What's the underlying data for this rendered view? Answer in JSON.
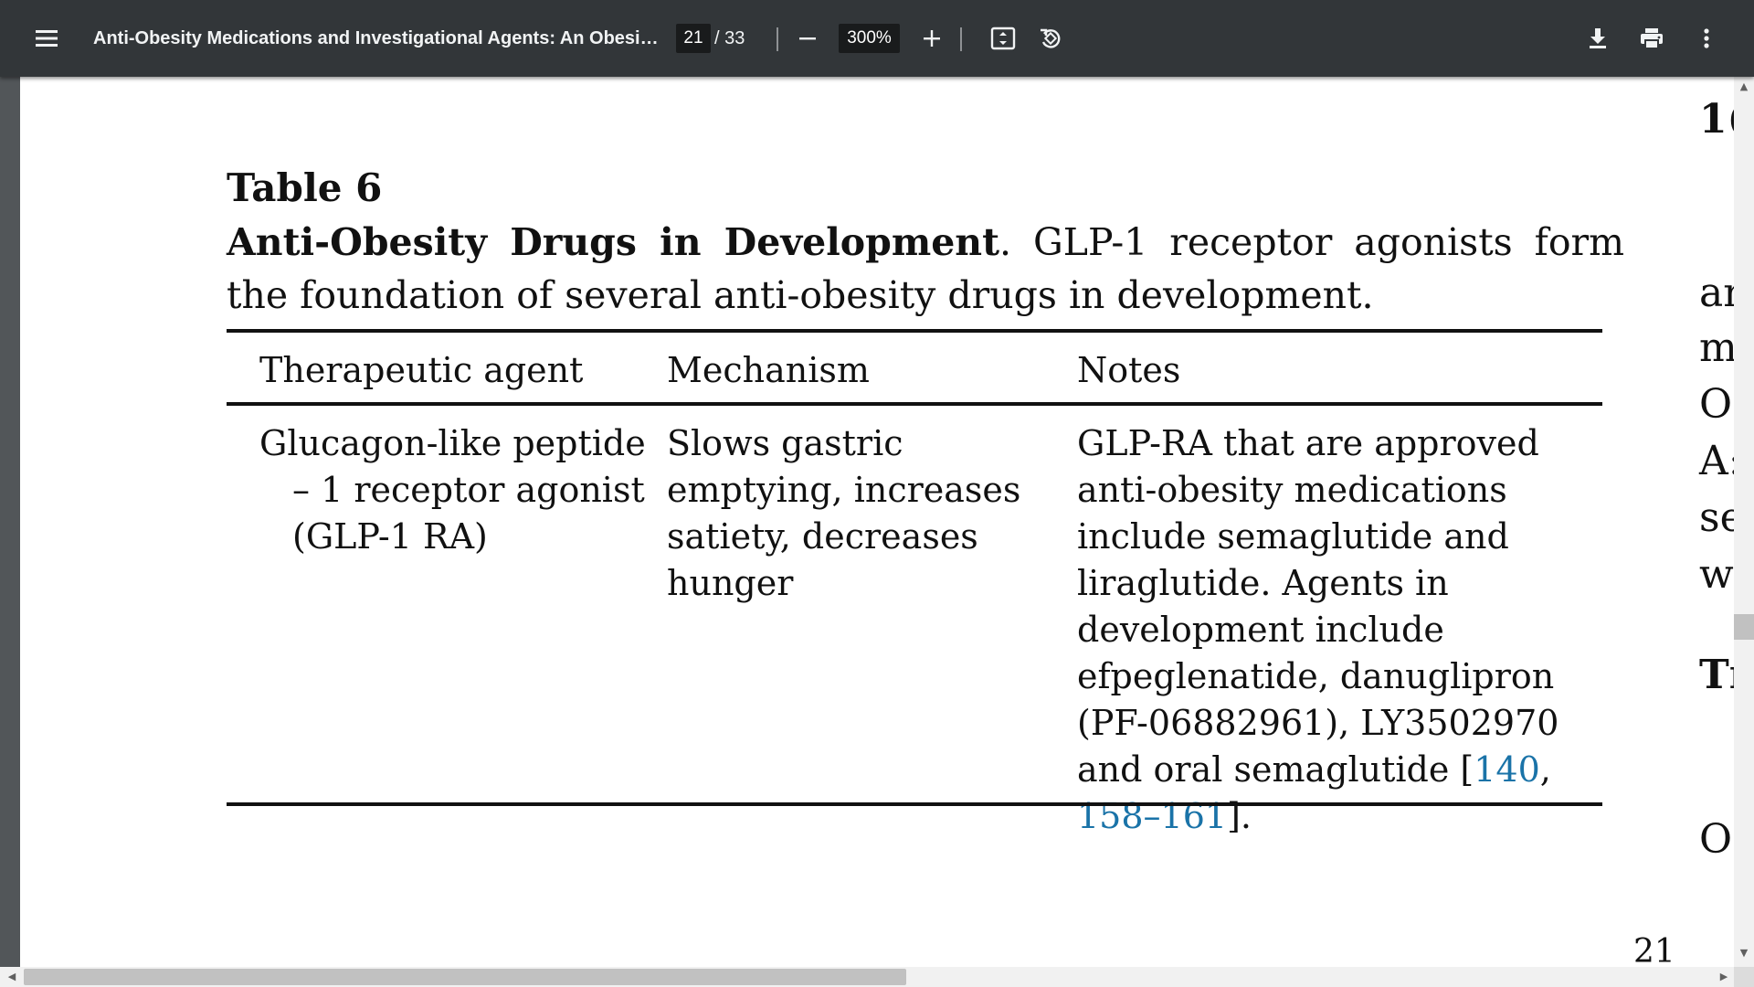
{
  "toolbar": {
    "menu_icon": "hamburger-menu-icon",
    "title": "Anti-Obesity Medications and Investigational Agents: An Obesit...",
    "page_current": "21",
    "page_separator": "/ 33",
    "zoom": "300%",
    "icons": [
      "zoom-out-icon",
      "zoom-in-icon",
      "fit-page-icon",
      "rotate-icon",
      "download-icon",
      "print-icon",
      "more-vert-icon"
    ]
  },
  "document": {
    "table_label": "Table 6",
    "caption_bold": "Anti-Obesity Drugs in Development",
    "caption_rest": ". GLP-1 receptor agonists form the foundation of several anti-obesity drugs in development.",
    "headers": [
      "Therapeutic agent",
      "Mechanism",
      "Notes"
    ],
    "row": {
      "agent": "Glucagon-like peptide – 1 receptor agonist (GLP-1 RA)",
      "mechanism": "Slows gastric emptying, increases satiety, decreases hunger",
      "notes_text": "GLP-RA that are approved anti-obesity medications include semaglutide and liraglutide. Agents in development include efpeglenatide, danuglipron (PF-06882961), LY3502970 and oral semaglutide [",
      "ref1": "140",
      "ref_sep": ",",
      "ref2": "158–161",
      "notes_end": "]."
    },
    "right_edge": [
      "1(",
      "ar",
      "m",
      "O",
      "A:",
      "se",
      "w",
      "Tı",
      "O"
    ],
    "page_number": "21"
  }
}
